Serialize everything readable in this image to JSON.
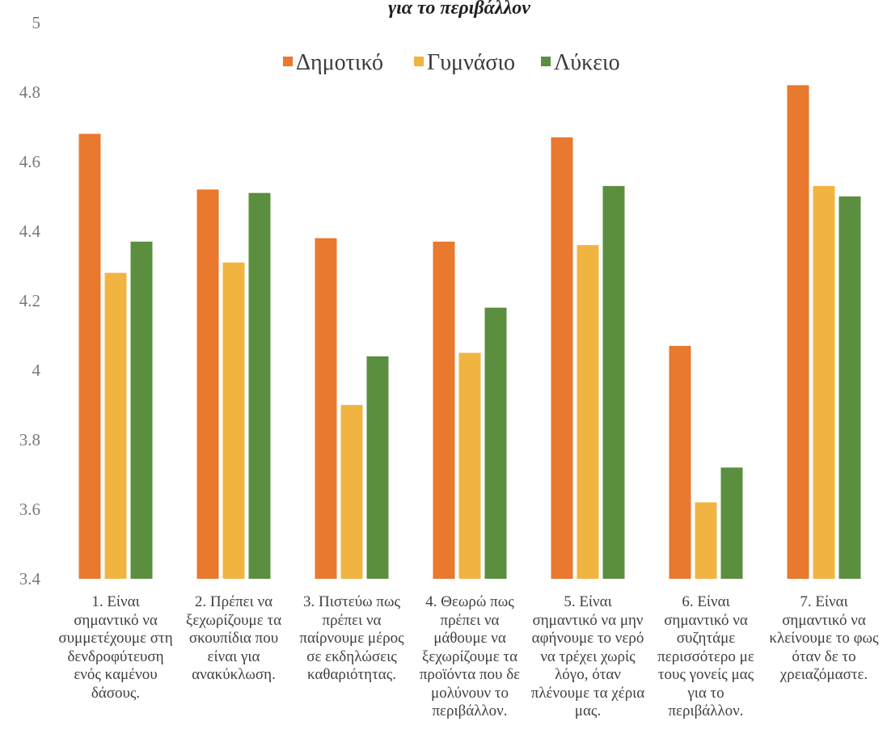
{
  "chart_data": {
    "type": "bar",
    "title": "για το περιβάλλον",
    "legend_position": "top",
    "ylim": [
      3.4,
      5
    ],
    "y_ticks": [
      "3.4",
      "3.6",
      "3.8",
      "4",
      "4.2",
      "4.4",
      "4.6",
      "4.8",
      "5"
    ],
    "grid": false,
    "categories": [
      "1. Είναι σημαντικό να συμμετέχουμε στη δενδροφύτευση ενός καμένου δάσους.",
      "2. Πρέπει να ξεχωρίζουμε τα σκουπίδια που είναι για ανακύκλωση.",
      "3. Πιστεύω πως πρέπει να παίρνουμε μέρος σε εκδηλώσεις καθαριότητας.",
      "4. Θεωρώ πως πρέπει να μάθουμε να ξεχωρίζουμε τα προϊόντα που δε μολύνουν το περιβάλλον.",
      "5. Είναι σημαντικό να μην αφήνουμε το νερό να τρέχει χωρίς λόγο, όταν πλένουμε τα χέρια μας.",
      "6. Είναι σημαντικό να συζητάμε περισσότερο με τους γονείς μας για το περιβάλλον.",
      "7. Είναι σημαντικό να κλείνουμε το φως όταν δε το χρειαζόμαστε."
    ],
    "series": [
      {
        "name": "Δημοτικό",
        "color": "#e8792e",
        "values": [
          4.68,
          4.52,
          4.38,
          4.37,
          4.67,
          4.07,
          4.82
        ]
      },
      {
        "name": "Γυμνάσιο",
        "color": "#f2b440",
        "values": [
          4.28,
          4.31,
          3.9,
          4.05,
          4.36,
          3.62,
          4.53
        ]
      },
      {
        "name": "Λύκειο",
        "color": "#5b8f3f",
        "values": [
          4.37,
          4.51,
          4.04,
          4.18,
          4.53,
          3.72,
          4.5
        ]
      }
    ]
  }
}
